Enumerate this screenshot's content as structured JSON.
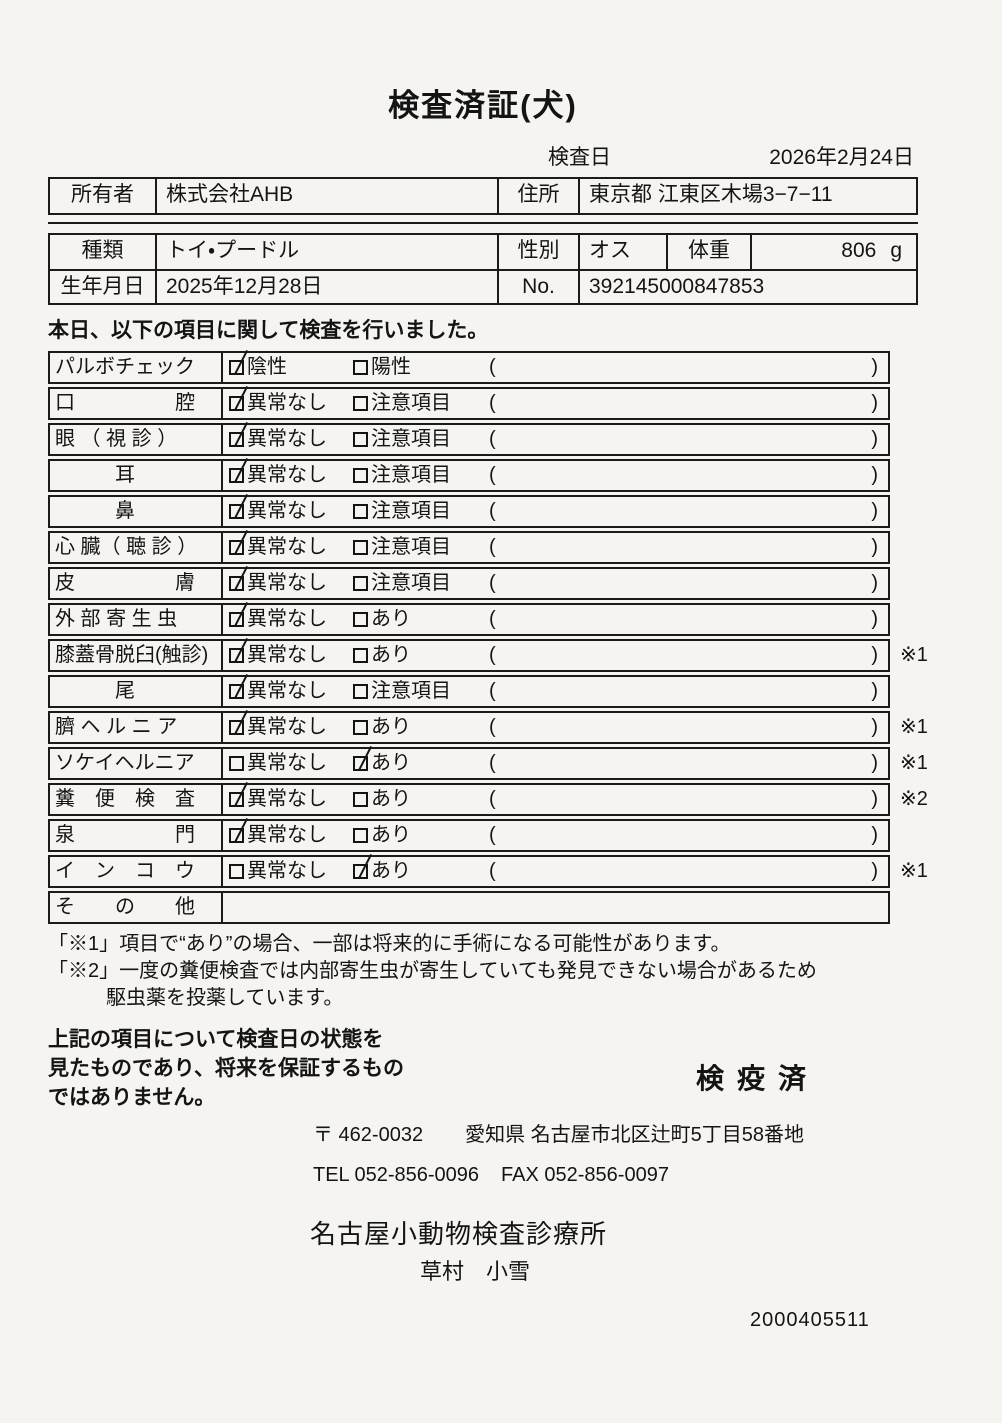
{
  "header": {
    "title": "検査済証(犬)",
    "date_label": "検査日",
    "date_value": "2026年2月24日"
  },
  "owner": {
    "owner_label": "所有者",
    "owner_value": "株式会社AHB",
    "address_label": "住所",
    "address_value": "東京都 江東区木場3−7−11"
  },
  "animal": {
    "breed_label": "種類",
    "breed_value": "トイ・プードル",
    "sex_label": "性別",
    "sex_value": "オス",
    "weight_label": "体重",
    "weight_value": "806",
    "weight_unit": "g",
    "birth_label": "生年月日",
    "birth_value": "2025年12月28日",
    "no_label": "No.",
    "no_value": "392145000847853"
  },
  "intro": "本日、以下の項目に関して検査を行いました。",
  "checklist": {
    "paren_open": "(",
    "paren_close": ")",
    "rows": [
      {
        "label": "パルボチェック",
        "opt1": "陰性",
        "opt1_checked": true,
        "opt2": "陽性",
        "opt2_checked": false,
        "note": ""
      },
      {
        "label": "口　　　　　腔",
        "opt1": "異常なし",
        "opt1_checked": true,
        "opt2": "注意項目",
        "opt2_checked": false,
        "note": ""
      },
      {
        "label": "眼 （ 視 診 ）",
        "opt1": "異常なし",
        "opt1_checked": true,
        "opt2": "注意項目",
        "opt2_checked": false,
        "note": ""
      },
      {
        "label": "　　　耳",
        "opt1": "異常なし",
        "opt1_checked": true,
        "opt2": "注意項目",
        "opt2_checked": false,
        "note": ""
      },
      {
        "label": "　　　鼻",
        "opt1": "異常なし",
        "opt1_checked": true,
        "opt2": "注意項目",
        "opt2_checked": false,
        "note": ""
      },
      {
        "label": "心 臓（ 聴 診 ）",
        "opt1": "異常なし",
        "opt1_checked": true,
        "opt2": "注意項目",
        "opt2_checked": false,
        "note": ""
      },
      {
        "label": "皮　　　　　膚",
        "opt1": "異常なし",
        "opt1_checked": true,
        "opt2": "注意項目",
        "opt2_checked": false,
        "note": ""
      },
      {
        "label": "外 部 寄 生 虫",
        "opt1": "異常なし",
        "opt1_checked": true,
        "opt2": "あり",
        "opt2_checked": false,
        "note": ""
      },
      {
        "label": "膝蓋骨脱臼(触診)",
        "opt1": "異常なし",
        "opt1_checked": true,
        "opt2": "あり",
        "opt2_checked": false,
        "note": "※1"
      },
      {
        "label": "　　　尾",
        "opt1": "異常なし",
        "opt1_checked": true,
        "opt2": "注意項目",
        "opt2_checked": false,
        "note": ""
      },
      {
        "label": "臍 ヘ ル ニ ア",
        "opt1": "異常なし",
        "opt1_checked": true,
        "opt2": "あり",
        "opt2_checked": false,
        "note": "※1"
      },
      {
        "label": "ソケイヘルニア",
        "opt1": "異常なし",
        "opt1_checked": false,
        "opt2": "あり",
        "opt2_checked": true,
        "note": "※1"
      },
      {
        "label": "糞　便　検　査",
        "opt1": "異常なし",
        "opt1_checked": true,
        "opt2": "あり",
        "opt2_checked": false,
        "note": "※2"
      },
      {
        "label": "泉　　　　　門",
        "opt1": "異常なし",
        "opt1_checked": true,
        "opt2": "あり",
        "opt2_checked": false,
        "note": ""
      },
      {
        "label": "イ　ン　コ　ウ",
        "opt1": "異常なし",
        "opt1_checked": false,
        "opt2": "あり",
        "opt2_checked": true,
        "note": "※1"
      },
      {
        "label": "そ　　の　　他",
        "opt1": "",
        "opt1_checked": false,
        "opt2": "",
        "opt2_checked": false,
        "note": "",
        "empty": true
      }
    ]
  },
  "notes": {
    "note1": "「※1」項目で“あり”の場合、一部は将来的に手術になる可能性があります。",
    "note2_line1": "「※2」一度の糞便検査では内部寄生虫が寄生していても発見できない場合があるため",
    "note2_line2": "駆虫薬を投薬しています。"
  },
  "footer": {
    "disclaimer_line1": "上記の項目について検査日の状態を",
    "disclaimer_line2": "見たものであり、将来を保証するもの",
    "disclaimer_line3": "ではありません。",
    "quarantine_stamp": "検疫済",
    "postal": "〒 462-0032",
    "address": "愛知県 名古屋市北区辻町5丁目58番地",
    "tel": "TEL 052-856-0096",
    "fax": "FAX 052-856-0097",
    "clinic_name": "名古屋小動物検査診療所",
    "vet_name": "草村　小雪",
    "doc_number": "2000405511"
  }
}
